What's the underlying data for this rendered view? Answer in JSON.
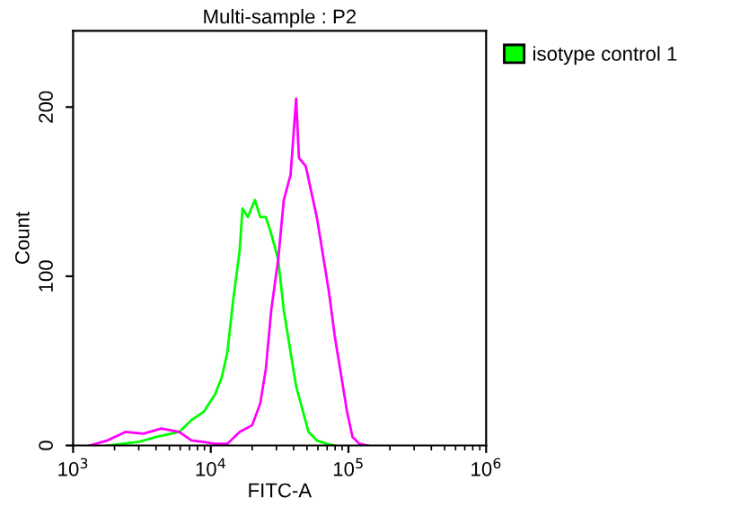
{
  "chart_data": {
    "type": "line",
    "title": "Multi-sample : P2",
    "xlabel": "FITC-A",
    "ylabel": "Count",
    "log": "x",
    "xlim": [
      1000,
      1000000
    ],
    "xticks": [
      {
        "value": 1000,
        "label": "10$^{3}$"
      },
      {
        "value": 10000,
        "label": "10$^{4}$"
      },
      {
        "value": 100000,
        "label": "10$^{5}$"
      },
      {
        "value": 1000000,
        "label": "10$^{6}$"
      }
    ],
    "ylim": [
      0,
      245
    ],
    "yticks": [
      0,
      100,
      200
    ],
    "grid": false,
    "legend": "top right",
    "marker": "none",
    "line_style": "solid",
    "series": [
      {
        "name": "isotype control 1",
        "color": "#00ff00",
        "x": [
          1780,
          2950,
          3980,
          5890,
          7240,
          8910,
          9770,
          10700,
          12000,
          13200,
          14500,
          16200,
          17000,
          18600,
          20900,
          22900,
          25100,
          27500,
          30900,
          33900,
          38000,
          41700,
          46800,
          51300,
          58900,
          69200,
          79400
        ],
        "values": [
          0,
          2,
          5,
          8,
          15,
          20,
          25,
          30,
          40,
          55,
          85,
          115,
          140,
          135,
          145,
          135,
          135,
          125,
          110,
          80,
          55,
          35,
          20,
          8,
          3,
          1,
          0
        ]
      },
      {
        "color": "#ff00ff",
        "x": [
          1320,
          1780,
          2400,
          3240,
          4370,
          5890,
          7240,
          8910,
          10700,
          13200,
          16200,
          20000,
          22900,
          25100,
          27500,
          30900,
          33900,
          38000,
          41700,
          43700,
          49000,
          53700,
          58900,
          64600,
          72400,
          79400,
          89100,
          97700,
          107000,
          120000,
          138000
        ],
        "values": [
          0,
          3,
          8,
          7,
          10,
          8,
          3,
          2,
          1,
          1,
          8,
          12,
          25,
          45,
          80,
          110,
          145,
          160,
          205,
          170,
          165,
          150,
          135,
          115,
          90,
          65,
          40,
          20,
          5,
          1,
          0
        ]
      }
    ]
  }
}
